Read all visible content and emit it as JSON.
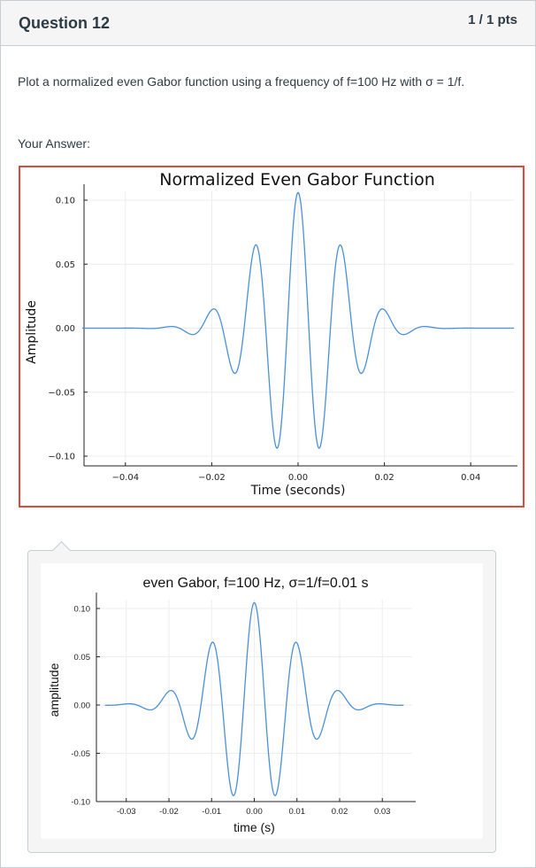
{
  "question": {
    "title": "Question 12",
    "points": "1 / 1 pts",
    "text": "Plot a normalized even Gabor function using a frequency of f=100 Hz with σ = 1/f.",
    "answer_label": "Your Answer:"
  },
  "colors": {
    "line": "#4a90d9",
    "answer_border": "#e0483c",
    "header_bg": "#f5f5f5"
  },
  "chart_data": [
    {
      "type": "line",
      "title": "Normalized Even Gabor Function",
      "xlabel": "Time (seconds)",
      "ylabel": "Amplitude",
      "xlim": [
        -0.05,
        0.05
      ],
      "ylim": [
        -0.1,
        0.1
      ],
      "xticks": [
        -0.04,
        -0.02,
        0.0,
        0.02,
        0.04
      ],
      "xtick_labels": [
        "−0.04",
        "−0.02",
        "0.00",
        "0.02",
        "0.04"
      ],
      "yticks": [
        0.1,
        0.05,
        0.0,
        -0.05,
        -0.1
      ],
      "ytick_labels": [
        "0.10",
        "0.05",
        "0.00",
        "−0.05",
        "−0.10"
      ],
      "grid": true,
      "series": [
        {
          "function": "even_gabor",
          "frequency_hz": 100,
          "sigma_s": 0.01,
          "peak": 0.106,
          "x_range": [
            -0.05,
            0.05
          ],
          "x": [
            -0.05,
            -0.04,
            -0.03,
            -0.02,
            -0.015,
            -0.01,
            -0.005,
            0.0,
            0.005,
            0.01,
            0.015,
            0.02,
            0.03,
            0.04,
            0.05
          ],
          "y": [
            0.0,
            0.0,
            0.001,
            0.014,
            -0.034,
            0.064,
            -0.093,
            0.106,
            -0.093,
            0.064,
            -0.034,
            0.014,
            0.001,
            0.0,
            0.0
          ]
        }
      ]
    },
    {
      "type": "line",
      "title": "even Gabor, f=100 Hz, σ=1/f=0.01 s",
      "xlabel": "time (s)",
      "ylabel": "amplitude",
      "xlim": [
        -0.037,
        0.037
      ],
      "ylim": [
        -0.1,
        0.1
      ],
      "xticks": [
        -0.03,
        -0.02,
        -0.01,
        0.0,
        0.01,
        0.02,
        0.03
      ],
      "xtick_labels": [
        "-0.03",
        "-0.02",
        "-0.01",
        "0.00",
        "0.01",
        "0.02",
        "0.03"
      ],
      "yticks": [
        0.1,
        0.05,
        0.0,
        -0.05,
        -0.1
      ],
      "ytick_labels": [
        "0.10",
        "0.05",
        "0.00",
        "-0.05",
        "-0.10"
      ],
      "grid": true,
      "series": [
        {
          "function": "even_gabor",
          "frequency_hz": 100,
          "sigma_s": 0.01,
          "peak": 0.106,
          "x_range": [
            -0.035,
            0.035
          ],
          "x": [
            -0.035,
            -0.03,
            -0.02,
            -0.015,
            -0.01,
            -0.005,
            0.0,
            0.005,
            0.01,
            0.015,
            0.02,
            0.03,
            0.035
          ],
          "y": [
            0.0,
            0.001,
            0.014,
            -0.034,
            0.064,
            -0.093,
            0.106,
            -0.093,
            0.064,
            -0.034,
            0.014,
            0.001,
            0.0
          ]
        }
      ]
    }
  ]
}
